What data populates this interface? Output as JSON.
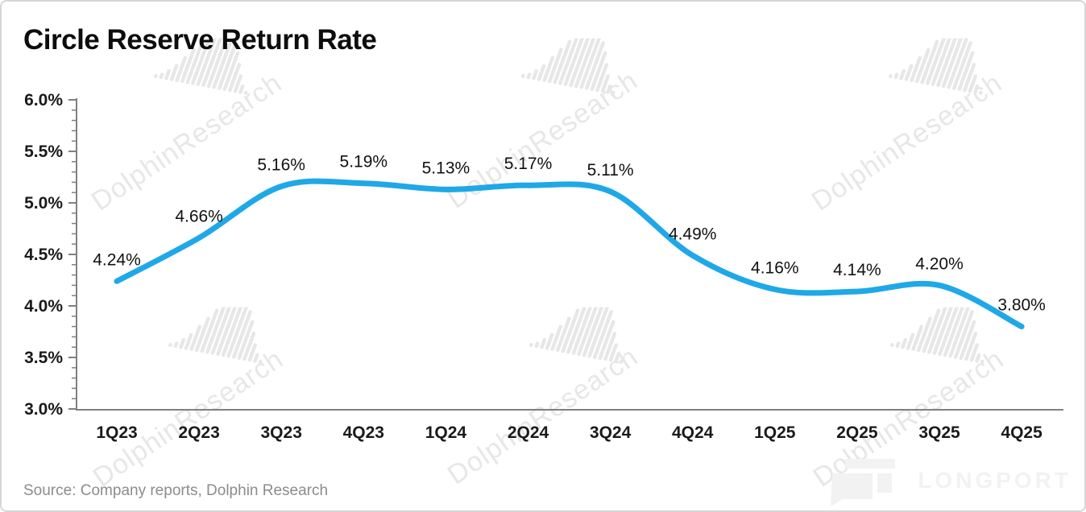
{
  "title": "Circle Reserve Return Rate",
  "source_note": "Source: Company reports, Dolphin Research",
  "watermark": {
    "text": "DolphinResearch",
    "icon": "dolphin-barcode-icon"
  },
  "brand": {
    "logo_text": "LONGPORT",
    "icon": "longport-logo-icon"
  },
  "colors": {
    "line": "#1FA8E8",
    "axis": "#808080",
    "tick_label": "#1a1a1a",
    "data_label": "#111111",
    "watermark": "#e7e7e7",
    "brand_watermark": "#f2f2f2",
    "source_text": "#8c8c8c",
    "border": "#d6d6d6",
    "background": "#ffffff"
  },
  "chart_data": {
    "type": "line",
    "title": "Circle Reserve Return Rate",
    "categories": [
      "1Q23",
      "2Q23",
      "3Q23",
      "4Q23",
      "1Q24",
      "2Q24",
      "3Q24",
      "4Q24",
      "1Q25",
      "2Q25",
      "3Q25",
      "4Q25"
    ],
    "series": [
      {
        "name": "Circle Reserve Return Rate",
        "values": [
          4.24,
          4.66,
          5.16,
          5.19,
          5.13,
          5.17,
          5.11,
          4.49,
          4.16,
          4.14,
          4.2,
          3.8
        ]
      }
    ],
    "data_labels": [
      "4.24%",
      "4.66%",
      "5.16%",
      "5.19%",
      "5.13%",
      "5.17%",
      "5.11%",
      "4.49%",
      "4.16%",
      "4.14%",
      "4.20%",
      "3.80%"
    ],
    "y_tick_labels": [
      "6.0%",
      "5.5%",
      "5.0%",
      "4.5%",
      "4.0%",
      "3.5%",
      "3.0%"
    ],
    "ylim": [
      3.0,
      6.0
    ],
    "y_major_step": 0.5,
    "y_minor_step": 0.1,
    "xlabel": "",
    "ylabel": "",
    "grid": false,
    "legend": "none",
    "smooth": true
  }
}
